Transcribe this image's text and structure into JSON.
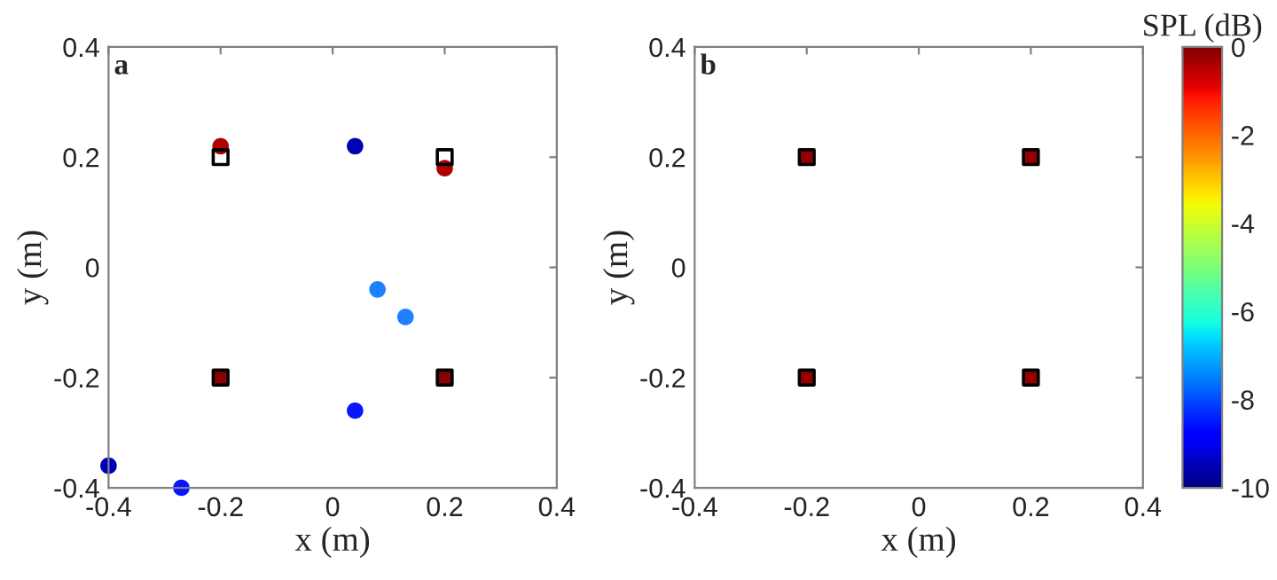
{
  "chart_data": [
    {
      "type": "scatter",
      "xlabel": "x (m)",
      "ylabel": "y (m)",
      "annotations": [
        "a"
      ],
      "xlim": [
        -0.4,
        0.4
      ],
      "ylim": [
        -0.4,
        0.4
      ],
      "xticks": [
        -0.4,
        -0.2,
        0,
        0.2,
        0.4
      ],
      "yticks": [
        -0.4,
        -0.2,
        0,
        0.2,
        0.4
      ],
      "grid": false,
      "series": [
        {
          "marker": "circle",
          "x": [
            -0.2,
            0.04,
            0.2,
            0.08,
            0.13,
            -0.2,
            0.2,
            0.04,
            -0.4,
            -0.27
          ],
          "values": [
            0.22,
            0.22,
            0.18,
            -0.04,
            -0.09,
            -0.2,
            -0.2,
            -0.26,
            -0.36,
            -0.4
          ],
          "colors": [
            "#b00000",
            "#0000b4",
            "#b00000",
            "#1e80ff",
            "#1e80ff",
            "#8b0000",
            "#8b0000",
            "#0a14ff",
            "#0000b4",
            "#0a14ff"
          ]
        },
        {
          "marker": "square",
          "color": "#000000",
          "x": [
            -0.2,
            0.2,
            -0.2,
            0.2
          ],
          "values": [
            0.2,
            0.2,
            -0.2,
            -0.2
          ]
        }
      ]
    },
    {
      "type": "scatter",
      "xlabel": "x (m)",
      "ylabel": "y (m)",
      "annotations": [
        "b"
      ],
      "xlim": [
        -0.4,
        0.4
      ],
      "ylim": [
        -0.4,
        0.4
      ],
      "xticks": [
        -0.4,
        -0.2,
        0,
        0.2,
        0.4
      ],
      "yticks": [
        -0.4,
        -0.2,
        0,
        0.2,
        0.4
      ],
      "clim": [
        -10,
        0
      ],
      "cticks": [
        -10,
        -8,
        -6,
        -4,
        -2,
        0
      ],
      "clabel": "SPL (dB)",
      "grid": false,
      "series": [
        {
          "marker": "circle",
          "x": [
            -0.2,
            0.2,
            -0.2,
            0.2
          ],
          "values": [
            0.2,
            0.2,
            -0.2,
            -0.2
          ],
          "cvalues": [
            -0.2,
            -0.2,
            -0.2,
            -0.2
          ]
        },
        {
          "marker": "square",
          "color": "#000000",
          "x": [
            -0.2,
            0.2,
            -0.2,
            0.2
          ],
          "values": [
            0.2,
            0.2,
            -0.2,
            -0.2
          ]
        }
      ]
    }
  ]
}
